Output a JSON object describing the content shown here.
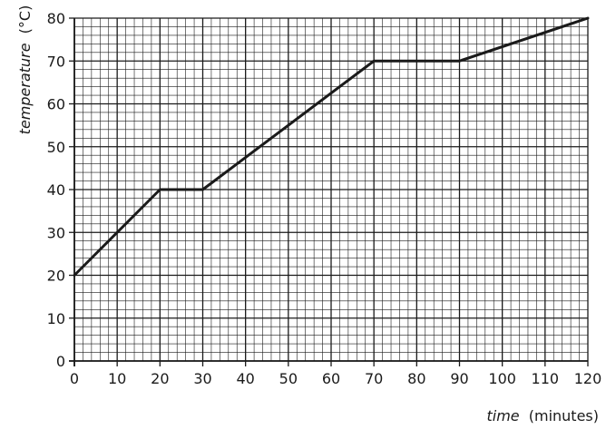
{
  "chart_data": {
    "type": "line",
    "xlabel_var": "time",
    "xlabel_unit": "(minutes)",
    "ylabel_var": "temperature",
    "ylabel_unit": "(°C)",
    "xlim": [
      0,
      120
    ],
    "ylim": [
      0,
      80
    ],
    "x_ticks": [
      0,
      10,
      20,
      30,
      40,
      50,
      60,
      70,
      80,
      90,
      100,
      110,
      120
    ],
    "y_ticks": [
      0,
      10,
      20,
      30,
      40,
      50,
      60,
      70,
      80
    ],
    "grid": true,
    "minor_per_major": 5,
    "x_tick_labels": [
      "0",
      "10",
      "20",
      "30",
      "40",
      "50",
      "60",
      "70",
      "80",
      "90",
      "100",
      "110",
      "120"
    ],
    "y_tick_labels": [
      "0",
      "10",
      "20",
      "30",
      "40",
      "50",
      "60",
      "70",
      "80"
    ],
    "series": [
      {
        "x": [
          0,
          20,
          30,
          70,
          90,
          120
        ],
        "y": [
          20,
          40,
          40,
          70,
          70,
          80
        ]
      }
    ],
    "colors": {
      "line": "#1a1a1a",
      "major_grid": "#1a1a1a",
      "minor_grid": "#1a1a1a"
    }
  }
}
